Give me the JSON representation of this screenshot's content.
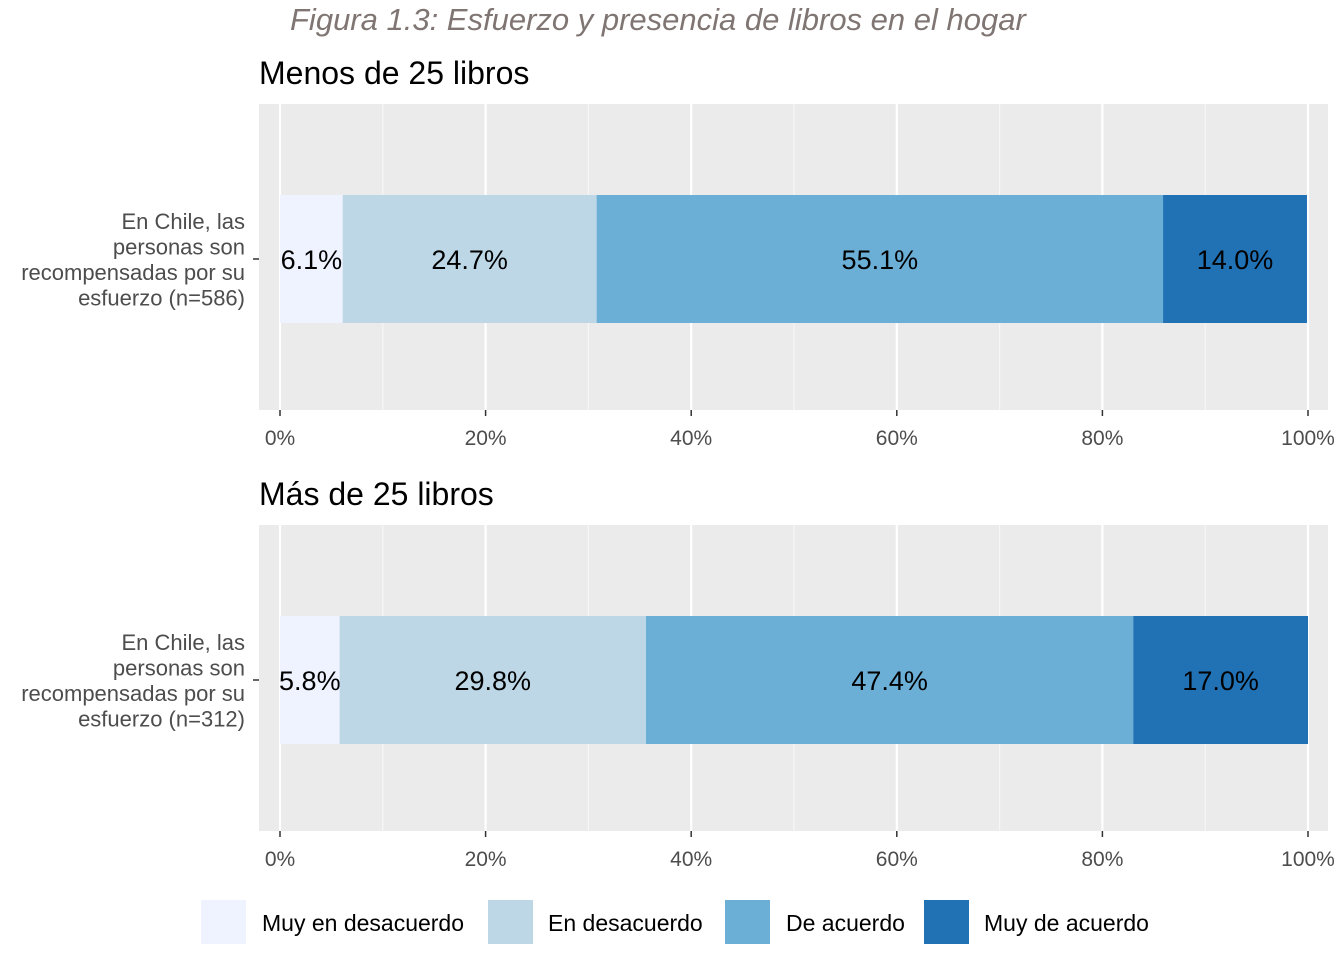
{
  "title": "Figura 1.3: Esfuerzo y presencia de libros en el hogar",
  "chart_data": {
    "type": "bar",
    "orientation": "horizontal",
    "stacked": true,
    "percent": true,
    "xlim": [
      0,
      100
    ],
    "x_ticks": [
      "0%",
      "20%",
      "40%",
      "60%",
      "80%",
      "100%"
    ],
    "grid": true,
    "legend_position": "bottom",
    "legend": [
      {
        "name": "Muy en desacuerdo",
        "color": "#eff3ff"
      },
      {
        "name": "En desacuerdo",
        "color": "#bdd7e7"
      },
      {
        "name": "De acuerdo",
        "color": "#6baed6"
      },
      {
        "name": "Muy de acuerdo",
        "color": "#2171b5"
      }
    ],
    "panels": [
      {
        "title": "Menos de 25 libros",
        "category_lines": [
          "En Chile, las",
          "personas son",
          "recompensadas por su",
          "esfuerzo (n=586)"
        ],
        "values": [
          6.1,
          24.7,
          55.1,
          14.0
        ],
        "labels": [
          "6.1%",
          "24.7%",
          "55.1%",
          "14.0%"
        ]
      },
      {
        "title": "Más de 25 libros",
        "category_lines": [
          "En Chile, las",
          "personas son",
          "recompensadas por su",
          "esfuerzo (n=312)"
        ],
        "values": [
          5.8,
          29.8,
          47.4,
          17.0
        ],
        "labels": [
          "5.8%",
          "29.8%",
          "47.4%",
          "17.0%"
        ]
      }
    ]
  }
}
